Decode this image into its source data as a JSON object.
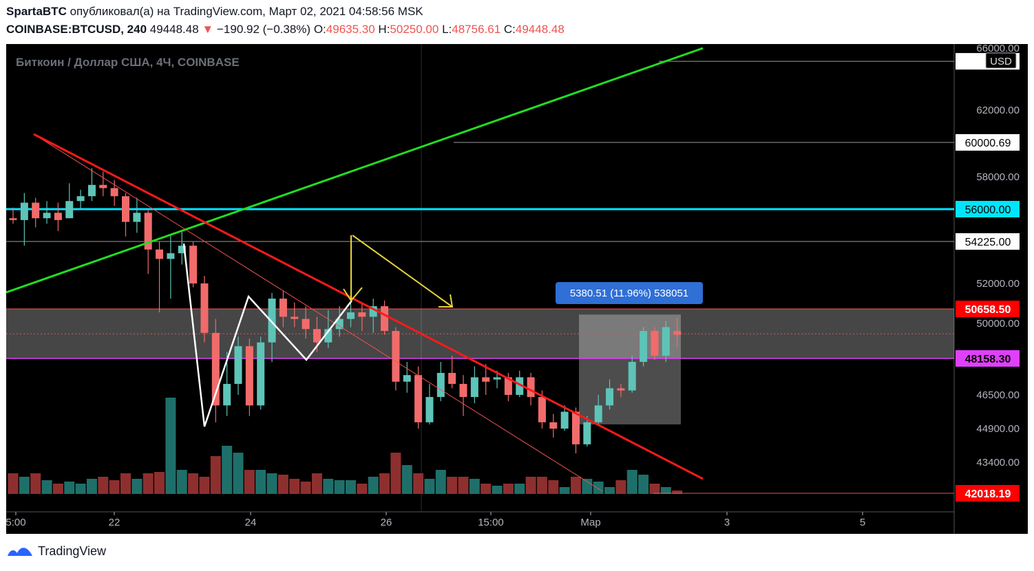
{
  "header": {
    "author": "SpartaBTC",
    "published_text": "опубликовал(а) на TradingView.com, Март 02, 2021 04:58:56 MSK",
    "symbol": "COINBASE:BTCUSD, 240",
    "last_price": "49448.48",
    "change_arrow": "▼",
    "change": "−190.92 (−0.38%)",
    "o_label": "O:",
    "o_value": "49635.30",
    "h_label": "H:",
    "h_value": "50250.00",
    "l_label": "L:",
    "l_value": "48756.61",
    "c_label": "C:",
    "c_value": "49448.48"
  },
  "footer": {
    "brand": "TradingView"
  },
  "chart_data": {
    "type": "candlestick",
    "title": "Биткоин / Доллар США, 4Ч, COINBASE",
    "currency": "USD",
    "colors": {
      "up": "#26a69a",
      "down": "#ef5350",
      "background": "#000000"
    },
    "x_ticks": [
      "5:00",
      "22",
      "24",
      "26",
      "15:00",
      "Мар",
      "3",
      "5"
    ],
    "y_ticks": [
      "66000.00",
      "62000.00",
      "58000.00",
      "52000.00",
      "50000.00",
      "46500.00",
      "44900.00",
      "43400.00"
    ],
    "price_labels": [
      {
        "text": "60000.69",
        "price": 60000.69,
        "bg": "#ffffff",
        "fg": "#000000",
        "line": "#9e9e9e"
      },
      {
        "text": "56000.00",
        "price": 56000,
        "bg": "#00e5ff",
        "fg": "#000000",
        "line": "#00e5ff"
      },
      {
        "text": "54225.00",
        "price": 54225,
        "bg": "#ffffff",
        "fg": "#000000",
        "line": "#9e9e9e"
      },
      {
        "text": "50658.50",
        "price": 50658.5,
        "bg": "#ff0000",
        "fg": "#ffffff",
        "line": "#ef5350"
      },
      {
        "text": "48158.30",
        "price": 48158.3,
        "bg": "#e040fb",
        "fg": "#000000",
        "line": "#e040fb"
      },
      {
        "text": "42018.19",
        "price": 42018.19,
        "bg": "#ff0000",
        "fg": "#ffffff",
        "line": "#ef5350"
      }
    ],
    "measure_label": "5380.51 (11.96%) 538051",
    "candles": [
      [
        55500,
        55400,
        56100,
        55200
      ],
      [
        55400,
        56400,
        57000,
        54000
      ],
      [
        56400,
        55500,
        56700,
        55000
      ],
      [
        55500,
        55800,
        56500,
        55200
      ],
      [
        55800,
        55400,
        56400,
        54800
      ],
      [
        55500,
        56500,
        57600,
        55800
      ],
      [
        56500,
        56800,
        57200,
        56000
      ],
      [
        56800,
        57500,
        58500,
        56500
      ],
      [
        57500,
        57300,
        58300,
        56800
      ],
      [
        57300,
        56800,
        57800,
        56200
      ],
      [
        56800,
        55300,
        57000,
        54500
      ],
      [
        55300,
        55800,
        56700,
        54700
      ],
      [
        55800,
        53800,
        56000,
        52500
      ],
      [
        53800,
        53300,
        54200,
        50500
      ],
      [
        53300,
        53600,
        54600,
        51200
      ],
      [
        53600,
        54000,
        54800,
        53000
      ],
      [
        54000,
        52000,
        54200,
        51800
      ],
      [
        52000,
        49500,
        52400,
        49000
      ],
      [
        49500,
        46000,
        50200,
        45200
      ],
      [
        46000,
        47000,
        48500,
        45500
      ],
      [
        47000,
        48800,
        49300,
        46500
      ],
      [
        48800,
        46000,
        49200,
        45500
      ],
      [
        46000,
        49000,
        49300,
        45800
      ],
      [
        49000,
        51200,
        51500,
        48000
      ],
      [
        51200,
        50300,
        51600,
        49800
      ],
      [
        50300,
        50200,
        51000,
        49800
      ],
      [
        50200,
        49700,
        50800,
        49200
      ],
      [
        49700,
        49000,
        50300,
        48500
      ],
      [
        49000,
        49700,
        50600,
        48700
      ],
      [
        49700,
        50200,
        50800,
        49300
      ],
      [
        50200,
        50500,
        51000,
        49800
      ],
      [
        50500,
        50300,
        51000,
        49600
      ],
      [
        50300,
        50800,
        51200,
        49500
      ],
      [
        50800,
        49600,
        51100,
        49400
      ],
      [
        49600,
        47100,
        49800,
        46700
      ],
      [
        47100,
        47400,
        48000,
        46600
      ],
      [
        47400,
        45200,
        47800,
        44900
      ],
      [
        45200,
        46400,
        47000,
        45100
      ],
      [
        46400,
        47500,
        48000,
        46200
      ],
      [
        47500,
        47000,
        48300,
        46800
      ],
      [
        47000,
        46400,
        47400,
        45500
      ],
      [
        46400,
        47300,
        47800,
        46100
      ],
      [
        47300,
        47100,
        47900,
        46500
      ],
      [
        47200,
        47300,
        47600,
        46800
      ],
      [
        47300,
        46500,
        47500,
        46200
      ],
      [
        46500,
        47300,
        47600,
        46400
      ],
      [
        47300,
        46400,
        47500,
        46000
      ],
      [
        46400,
        45200,
        46700,
        44900
      ],
      [
        45200,
        44900,
        45600,
        44500
      ],
      [
        44900,
        45700,
        46000,
        44800
      ],
      [
        45700,
        44200,
        45900,
        43800
      ],
      [
        44200,
        45200,
        45500,
        44100
      ],
      [
        45200,
        46000,
        46500,
        45100
      ],
      [
        46000,
        46800,
        47200,
        45800
      ],
      [
        46800,
        46700,
        47000,
        46400
      ],
      [
        46700,
        48000,
        48300,
        46600
      ],
      [
        48000,
        49600,
        49800,
        47800
      ],
      [
        49600,
        48300,
        49800,
        48100
      ],
      [
        48300,
        49800,
        50100,
        48000
      ],
      [
        49600,
        49400,
        50250,
        48756
      ]
    ],
    "volumes": [
      30,
      25,
      30,
      20,
      15,
      18,
      15,
      22,
      25,
      20,
      30,
      22,
      30,
      32,
      140,
      35,
      30,
      25,
      55,
      70,
      60,
      35,
      35,
      30,
      28,
      22,
      18,
      30,
      22,
      20,
      20,
      15,
      25,
      30,
      60,
      42,
      30,
      22,
      35,
      25,
      25,
      22,
      15,
      12,
      15,
      15,
      25,
      25,
      20,
      10,
      25,
      22,
      18,
      10,
      20,
      35,
      28,
      15,
      10,
      5
    ]
  }
}
